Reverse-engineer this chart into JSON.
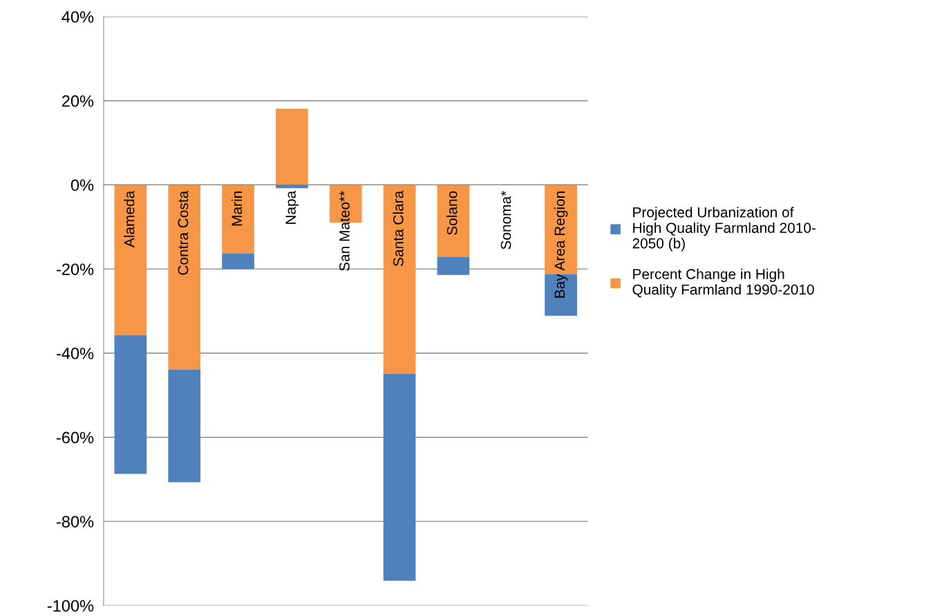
{
  "chart_data": {
    "type": "bar",
    "stacked": true,
    "categories": [
      "Alameda",
      "Contra Costa",
      "Marin",
      "Napa",
      "San Mateo**",
      "Santa Clara",
      "Solano",
      "Sonoma*",
      "Bay Area Region"
    ],
    "series": [
      {
        "name": "Percent Change in High\nQuality Farmland 1990-2010",
        "color": "#f79646",
        "values": [
          -35.7,
          -43.9,
          -16.3,
          18.1,
          -9.0,
          -44.9,
          -17.1,
          null,
          -21.2
        ]
      },
      {
        "name": "Projected Urbanization of\nHigh Quality Farmland 2010-\n2050 (b)",
        "color": "#4f81bd",
        "values": [
          -33.0,
          -26.8,
          -3.7,
          -0.8,
          null,
          -49.2,
          -4.3,
          null,
          -9.9
        ]
      }
    ],
    "ylim": [
      -100,
      40
    ],
    "yticks": [
      {
        "value": -100,
        "label": "-100%"
      },
      {
        "value": -80,
        "label": "-80%"
      },
      {
        "value": -60,
        "label": "-60%"
      },
      {
        "value": -40,
        "label": "-40%"
      },
      {
        "value": -20,
        "label": "-20%"
      },
      {
        "value": 0,
        "label": "0%"
      },
      {
        "value": 20,
        "label": "20%"
      },
      {
        "value": 40,
        "label": "40%"
      }
    ],
    "grid": "y",
    "legend": "right"
  }
}
